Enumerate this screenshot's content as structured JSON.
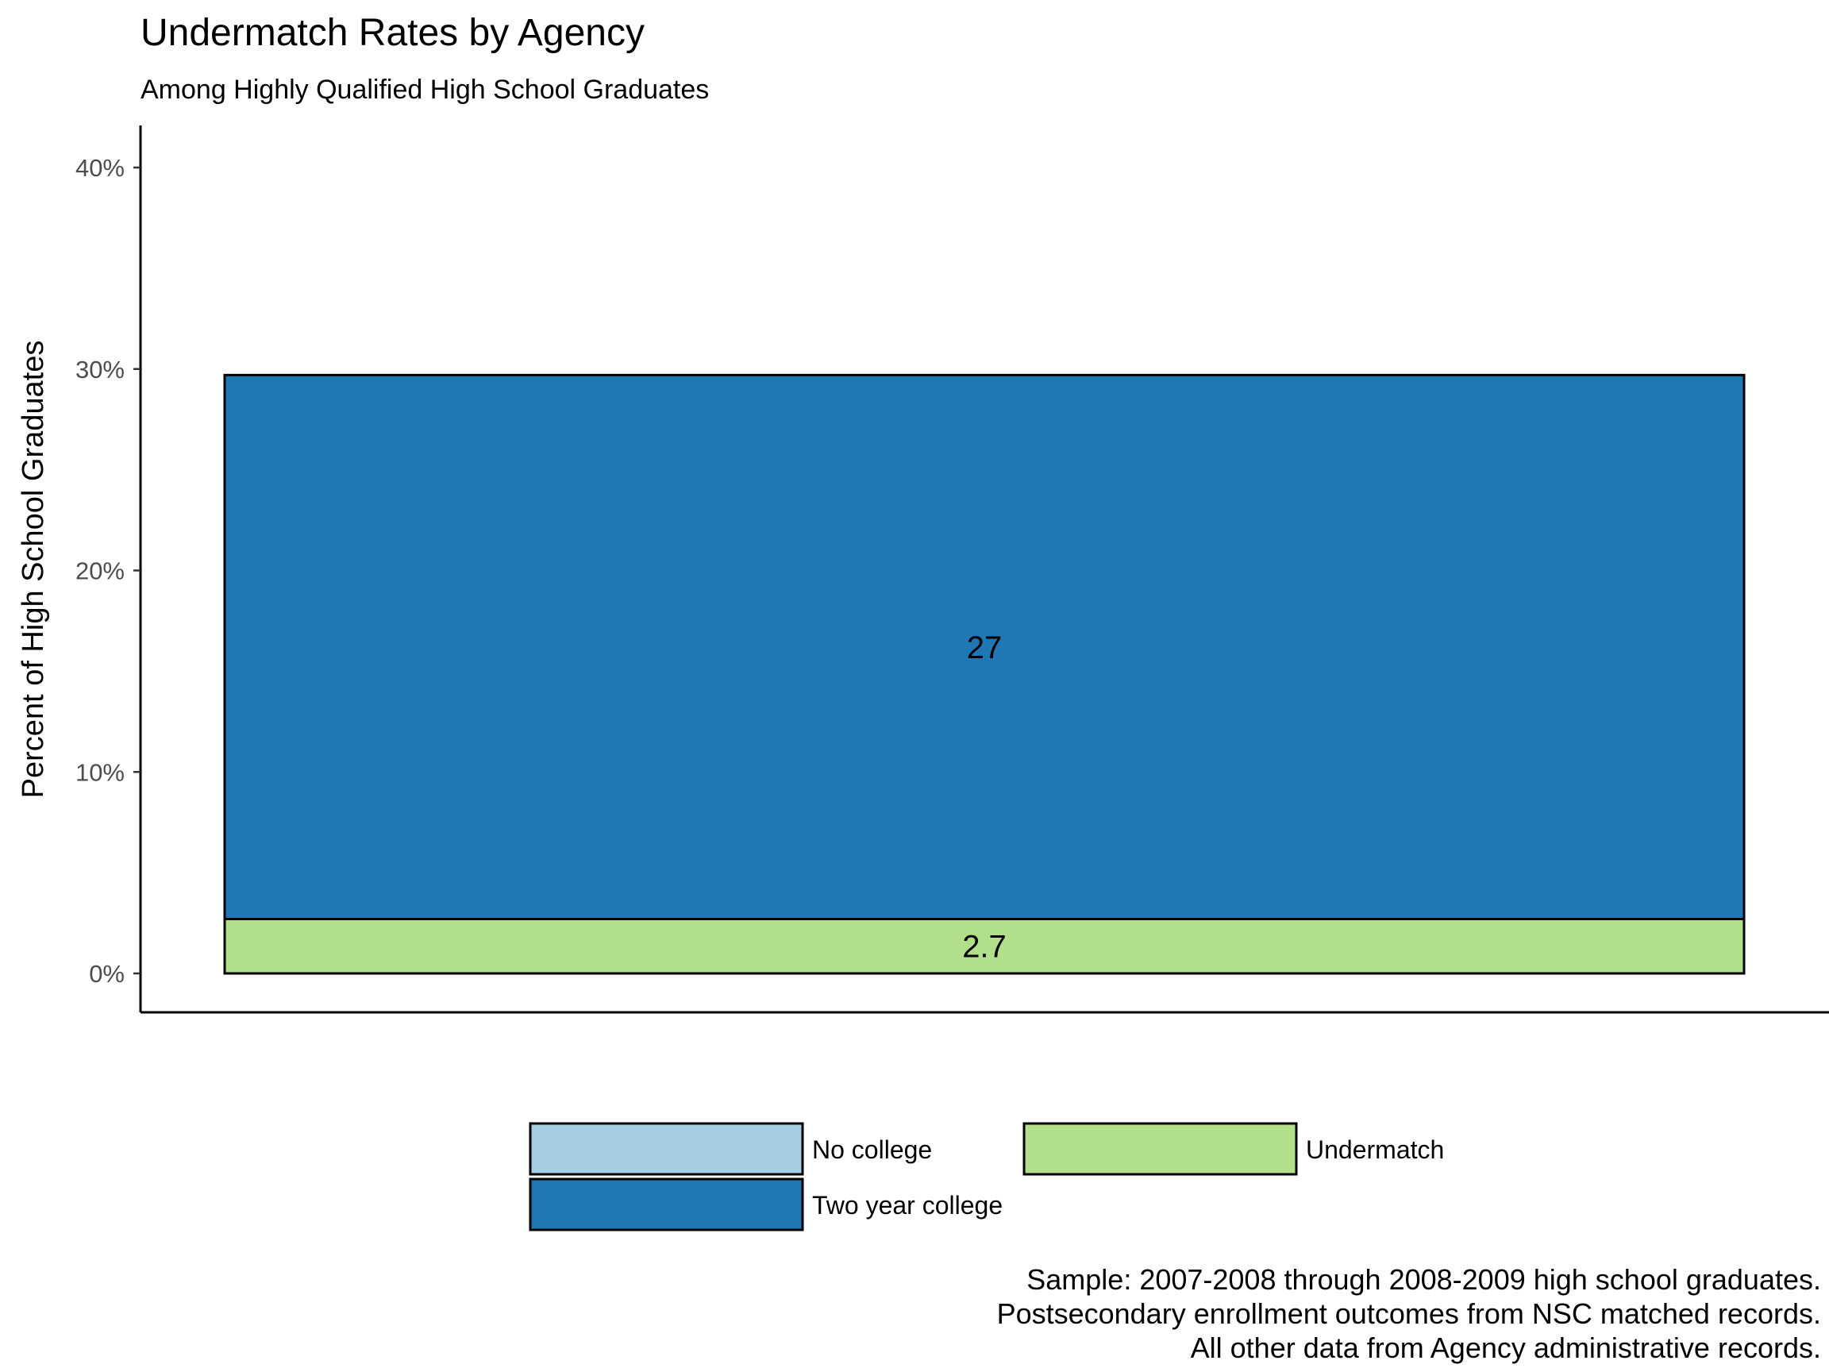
{
  "chart_data": {
    "type": "bar",
    "stacked": true,
    "title": "Undermatch Rates by Agency",
    "subtitle": "Among Highly Qualified High School Graduates",
    "ylabel": "Percent of High School Graduates",
    "xlabel": "",
    "ylim": [
      0,
      0.42
    ],
    "yticks": [
      0,
      0.1,
      0.2,
      0.3,
      0.4
    ],
    "ytick_labels": [
      "0%",
      "10%",
      "20%",
      "30%",
      "40%"
    ],
    "categories": [
      ""
    ],
    "series": [
      {
        "name": "Undermatch",
        "values": [
          0.027
        ],
        "label": "2.7",
        "color": "#b2df8a"
      },
      {
        "name": "Two year college",
        "values": [
          0.27
        ],
        "label": "27",
        "color": "#1f78b4"
      },
      {
        "name": "No college",
        "values": [
          0
        ],
        "label": "",
        "color": "#a6cee3"
      }
    ],
    "legend": {
      "placement": "bottom",
      "entries": [
        {
          "name": "No college",
          "color": "#a6cee3"
        },
        {
          "name": "Undermatch",
          "color": "#b2df8a"
        },
        {
          "name": "Two year college",
          "color": "#1f78b4"
        }
      ]
    },
    "grid": false
  },
  "caption": {
    "line1": "Sample: 2007-2008 through 2008-2009 high school graduates.",
    "line2": "Postsecondary enrollment outcomes from NSC matched records.",
    "line3": "All other data from Agency administrative records."
  }
}
